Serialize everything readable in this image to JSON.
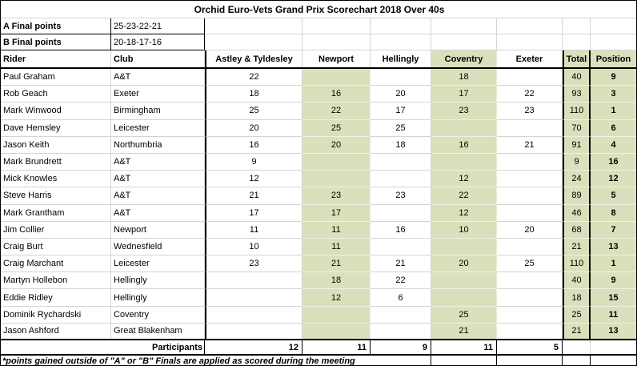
{
  "title": "Orchid Euro-Vets Grand Prix Scorechart 2018 Over 40s",
  "finals": {
    "a_label": "A Final points",
    "a_value": "25-23-22-21",
    "b_label": "B Final points",
    "b_value": "20-18-17-16"
  },
  "colors": {
    "highlight_green": "#d9e1bc",
    "grid_line": "#d4d4d4"
  },
  "table": {
    "columns": [
      "Rider",
      "Club",
      "Astley & Tyldesley",
      "Newport",
      "Hellingly",
      "Coventry",
      "Exeter",
      "Total",
      "Position"
    ],
    "rows": [
      {
        "rider": "Paul Graham",
        "club": "A&T",
        "scores": [
          "22",
          "",
          "",
          "18",
          ""
        ],
        "total": "40",
        "position": "9"
      },
      {
        "rider": "Rob Geach",
        "club": "Exeter",
        "scores": [
          "18",
          "16",
          "20",
          "17",
          "22"
        ],
        "total": "93",
        "position": "3"
      },
      {
        "rider": "Mark Winwood",
        "club": "Birmingham",
        "scores": [
          "25",
          "22",
          "17",
          "23",
          "23"
        ],
        "total": "110",
        "position": "1"
      },
      {
        "rider": "Dave Hemsley",
        "club": "Leicester",
        "scores": [
          "20",
          "25",
          "25",
          "",
          ""
        ],
        "total": "70",
        "position": "6"
      },
      {
        "rider": "Jason Keith",
        "club": "Northumbria",
        "scores": [
          "16",
          "20",
          "18",
          "16",
          "21"
        ],
        "total": "91",
        "position": "4"
      },
      {
        "rider": "Mark Brundrett",
        "club": "A&T",
        "scores": [
          "9",
          "",
          "",
          "",
          ""
        ],
        "total": "9",
        "position": "16"
      },
      {
        "rider": "Mick Knowles",
        "club": "A&T",
        "scores": [
          "12",
          "",
          "",
          "12",
          ""
        ],
        "total": "24",
        "position": "12"
      },
      {
        "rider": "Steve Harris",
        "club": "A&T",
        "scores": [
          "21",
          "23",
          "23",
          "22",
          ""
        ],
        "total": "89",
        "position": "5"
      },
      {
        "rider": "Mark Grantham",
        "club": "A&T",
        "scores": [
          "17",
          "17",
          "",
          "12",
          ""
        ],
        "total": "46",
        "position": "8"
      },
      {
        "rider": "Jim Collier",
        "club": "Newport",
        "scores": [
          "11",
          "11",
          "16",
          "10",
          "20"
        ],
        "total": "68",
        "position": "7"
      },
      {
        "rider": "Craig Burt",
        "club": "Wednesfield",
        "scores": [
          "10",
          "11",
          "",
          "",
          ""
        ],
        "total": "21",
        "position": "13"
      },
      {
        "rider": "Craig Marchant",
        "club": "Leicester",
        "scores": [
          "23",
          "21",
          "21",
          "20",
          "25"
        ],
        "total": "110",
        "position": "1"
      },
      {
        "rider": "Martyn Hollebon",
        "club": "Hellingly",
        "scores": [
          "",
          "18",
          "22",
          "",
          ""
        ],
        "total": "40",
        "position": "9"
      },
      {
        "rider": "Eddie Ridley",
        "club": "Hellingly",
        "scores": [
          "",
          "12",
          "6",
          "",
          ""
        ],
        "total": "18",
        "position": "15"
      },
      {
        "rider": "Dominik Rychardski",
        "club": "Coventry",
        "scores": [
          "",
          "",
          "",
          "25",
          ""
        ],
        "total": "25",
        "position": "11"
      },
      {
        "rider": "Jason Ashford",
        "club": "Great Blakenham",
        "scores": [
          "",
          "",
          "",
          "21",
          ""
        ],
        "total": "21",
        "position": "13"
      }
    ],
    "participants": {
      "label": "Participants",
      "values": [
        "12",
        "11",
        "9",
        "11",
        "5"
      ]
    }
  },
  "footnote": "*points gained outside of \"A\" or \"B\" Finals are applied as scored during the meeting"
}
